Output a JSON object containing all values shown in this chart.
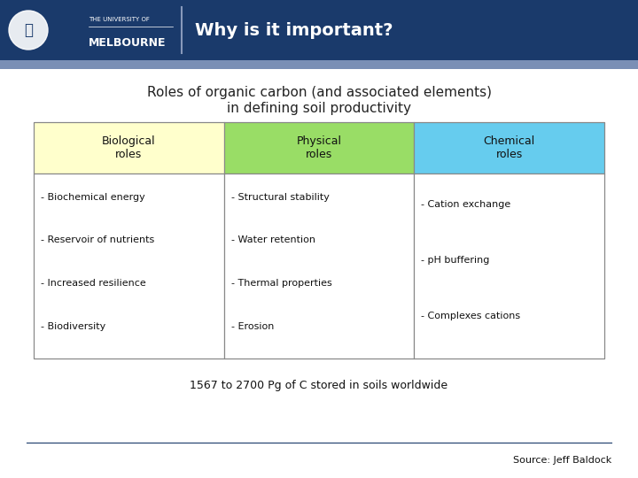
{
  "header_bg": "#1a3a6b",
  "header_accent": "#7a8fb5",
  "header_title": "Why is it important?",
  "header_title_color": "#ffffff",
  "slide_bg": "#ffffff",
  "subtitle_line1": "Roles of organic carbon (and associated elements)",
  "subtitle_line2": "in defining soil productivity",
  "subtitle_color": "#222222",
  "subtitle_fontsize": 11,
  "col_headers": [
    "Biological\nroles",
    "Physical\nroles",
    "Chemical\nroles"
  ],
  "col_header_colors": [
    "#ffffcc",
    "#99dd66",
    "#66ccee"
  ],
  "col_items": [
    [
      "- Biochemical energy",
      "- Reservoir of nutrients",
      "- Increased resilience",
      "- Biodiversity"
    ],
    [
      "- Structural stability",
      "- Water retention",
      "- Thermal properties",
      "- Erosion"
    ],
    [
      "- Cation exchange",
      "- pH buffering",
      "- Complexes cations"
    ]
  ],
  "table_border_color": "#888888",
  "table_text_color": "#111111",
  "footer_text": "1567 to 2700 Pg of C stored in soils worldwide",
  "footer_color": "#111111",
  "footer_fontsize": 9,
  "source_text": "Source: Jeff Baldock",
  "source_color": "#111111",
  "source_fontsize": 8,
  "item_fontsize": 8,
  "col_header_fontsize": 9,
  "title_fontsize": 14,
  "logo_text1": "THE UNIVERSITY OF",
  "logo_text2": "MELBOURNE"
}
